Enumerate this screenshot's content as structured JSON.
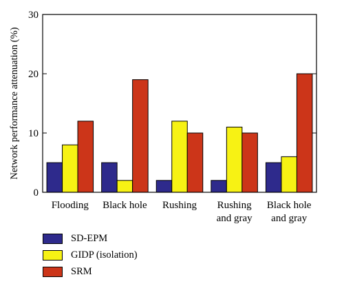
{
  "chart_data": {
    "type": "bar",
    "categories": [
      [
        "Flooding"
      ],
      [
        "Black hole"
      ],
      [
        "Rushing"
      ],
      [
        "Rushing",
        "and gray"
      ],
      [
        "Black hole",
        "and gray"
      ]
    ],
    "series": [
      {
        "name": "SD-EPM",
        "color": "#2e2a8c",
        "values": [
          5,
          5,
          2,
          2,
          5
        ]
      },
      {
        "name": "GIDP (isolation)",
        "color": "#f7f214",
        "values": [
          8,
          2,
          12,
          11,
          6
        ]
      },
      {
        "name": "SRM",
        "color": "#cc3519",
        "values": [
          12,
          19,
          10,
          10,
          20
        ]
      }
    ],
    "ylabel": "Network performance attenuation (%)",
    "ylim": [
      0,
      30
    ],
    "yticks": [
      0,
      10,
      20,
      30
    ],
    "grid": false,
    "legend_position": "bottom-left"
  }
}
